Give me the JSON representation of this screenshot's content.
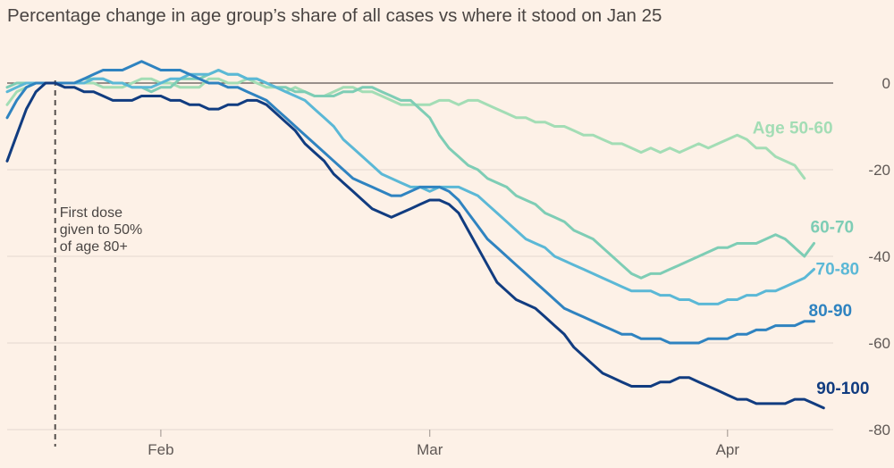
{
  "chart_data": {
    "type": "line",
    "title": "Percentage change in age group’s share of all cases vs where it stood on Jan 25",
    "xlabel": "",
    "ylabel": "",
    "ylim": [
      -80,
      5
    ],
    "yticks": [
      0,
      -20,
      -40,
      -60,
      -80
    ],
    "x_unit": "days since Jan 16",
    "xlim": [
      0,
      86
    ],
    "xticks": [
      {
        "label": "Feb",
        "x": 16
      },
      {
        "label": "Mar",
        "x": 44
      },
      {
        "label": "Apr",
        "x": 75
      }
    ],
    "annotation": {
      "x": 5,
      "lines": [
        "First dose",
        "given to 50%",
        "of age 80+"
      ]
    },
    "series": [
      {
        "name": "Age 50-60",
        "color": "#a3ddb5",
        "x_start": 0,
        "values": [
          -5,
          -2,
          -1,
          0,
          0,
          0,
          0,
          0,
          0,
          0,
          -1,
          -1,
          -1,
          0,
          1,
          1,
          0,
          0,
          -1,
          -1,
          -1,
          1,
          1,
          0,
          0,
          1,
          0,
          -1,
          -1,
          -2,
          -1,
          -2,
          -3,
          -3,
          -2,
          -1,
          -1,
          -2,
          -2,
          -3,
          -4,
          -5,
          -5,
          -5,
          -5,
          -4,
          -4,
          -5,
          -4,
          -4,
          -5,
          -6,
          -7,
          -8,
          -8,
          -9,
          -9,
          -10,
          -10,
          -11,
          -12,
          -12,
          -13,
          -14,
          -14,
          -15,
          -16,
          -15,
          -16,
          -15,
          -16,
          -15,
          -14,
          -15,
          -14,
          -13,
          -12,
          -13,
          -15,
          -15,
          -17,
          -18,
          -19,
          -22
        ]
      },
      {
        "name": "60-70",
        "color": "#7ecdb5",
        "x_start": 0,
        "values": [
          -1,
          0,
          0,
          0,
          0,
          0,
          0,
          0,
          1,
          1,
          1,
          0,
          0,
          -1,
          -1,
          -2,
          -1,
          -1,
          1,
          1,
          1,
          2,
          3,
          2,
          2,
          1,
          1,
          0,
          -1,
          -1,
          -2,
          -2,
          -3,
          -3,
          -3,
          -2,
          -2,
          -1,
          -1,
          -2,
          -3,
          -4,
          -4,
          -6,
          -8,
          -12,
          -15,
          -17,
          -19,
          -20,
          -22,
          -23,
          -24,
          -26,
          -27,
          -28,
          -30,
          -31,
          -32,
          -34,
          -35,
          -36,
          -38,
          -40,
          -42,
          -44,
          -45,
          -44,
          -44,
          -43,
          -42,
          -41,
          -40,
          -39,
          -38,
          -38,
          -37,
          -37,
          -37,
          -36,
          -35,
          -36,
          -38,
          -40,
          -37
        ]
      },
      {
        "name": "70-80",
        "color": "#5bb8d6",
        "x_start": 0,
        "values": [
          -2,
          -1,
          0,
          0,
          0,
          0,
          0,
          0,
          0,
          1,
          1,
          0,
          0,
          -1,
          -1,
          -1,
          0,
          1,
          1,
          2,
          2,
          2,
          3,
          2,
          2,
          1,
          1,
          0,
          -1,
          -2,
          -3,
          -4,
          -6,
          -8,
          -10,
          -13,
          -15,
          -17,
          -19,
          -21,
          -22,
          -23,
          -24,
          -24,
          -25,
          -24,
          -24,
          -24,
          -25,
          -26,
          -28,
          -30,
          -32,
          -34,
          -36,
          -37,
          -38,
          -40,
          -41,
          -42,
          -43,
          -44,
          -45,
          -46,
          -47,
          -48,
          -48,
          -48,
          -49,
          -49,
          -50,
          -50,
          -51,
          -51,
          -51,
          -50,
          -50,
          -49,
          -49,
          -48,
          -48,
          -47,
          -46,
          -45,
          -43
        ]
      },
      {
        "name": "80-90",
        "color": "#2f83c0",
        "x_start": 0,
        "values": [
          -8,
          -4,
          -1,
          0,
          0,
          0,
          0,
          0,
          1,
          2,
          3,
          3,
          3,
          4,
          5,
          4,
          3,
          3,
          3,
          2,
          1,
          0,
          0,
          -1,
          -1,
          -2,
          -3,
          -4,
          -6,
          -8,
          -10,
          -12,
          -14,
          -16,
          -18,
          -20,
          -22,
          -23,
          -24,
          -25,
          -26,
          -26,
          -25,
          -24,
          -24,
          -24,
          -25,
          -27,
          -30,
          -33,
          -36,
          -38,
          -40,
          -42,
          -44,
          -46,
          -48,
          -50,
          -52,
          -53,
          -54,
          -55,
          -56,
          -57,
          -58,
          -58,
          -59,
          -59,
          -59,
          -60,
          -60,
          -60,
          -60,
          -59,
          -59,
          -59,
          -58,
          -58,
          -57,
          -57,
          -56,
          -56,
          -56,
          -55,
          -55
        ]
      },
      {
        "name": "90-100",
        "color": "#113c80",
        "x_start": 0,
        "values": [
          -18,
          -12,
          -6,
          -2,
          0,
          0,
          -1,
          -1,
          -2,
          -2,
          -3,
          -4,
          -4,
          -4,
          -3,
          -3,
          -3,
          -4,
          -4,
          -5,
          -5,
          -6,
          -6,
          -5,
          -5,
          -4,
          -4,
          -5,
          -7,
          -9,
          -11,
          -14,
          -16,
          -18,
          -21,
          -23,
          -25,
          -27,
          -29,
          -30,
          -31,
          -30,
          -29,
          -28,
          -27,
          -27,
          -28,
          -30,
          -34,
          -38,
          -42,
          -46,
          -48,
          -50,
          -51,
          -52,
          -54,
          -56,
          -58,
          -61,
          -63,
          -65,
          -67,
          -68,
          -69,
          -70,
          -70,
          -70,
          -69,
          -69,
          -68,
          -68,
          -69,
          -70,
          -71,
          -72,
          -73,
          -73,
          -74,
          -74,
          -74,
          -74,
          -73,
          -73,
          -74,
          -75
        ]
      }
    ]
  }
}
